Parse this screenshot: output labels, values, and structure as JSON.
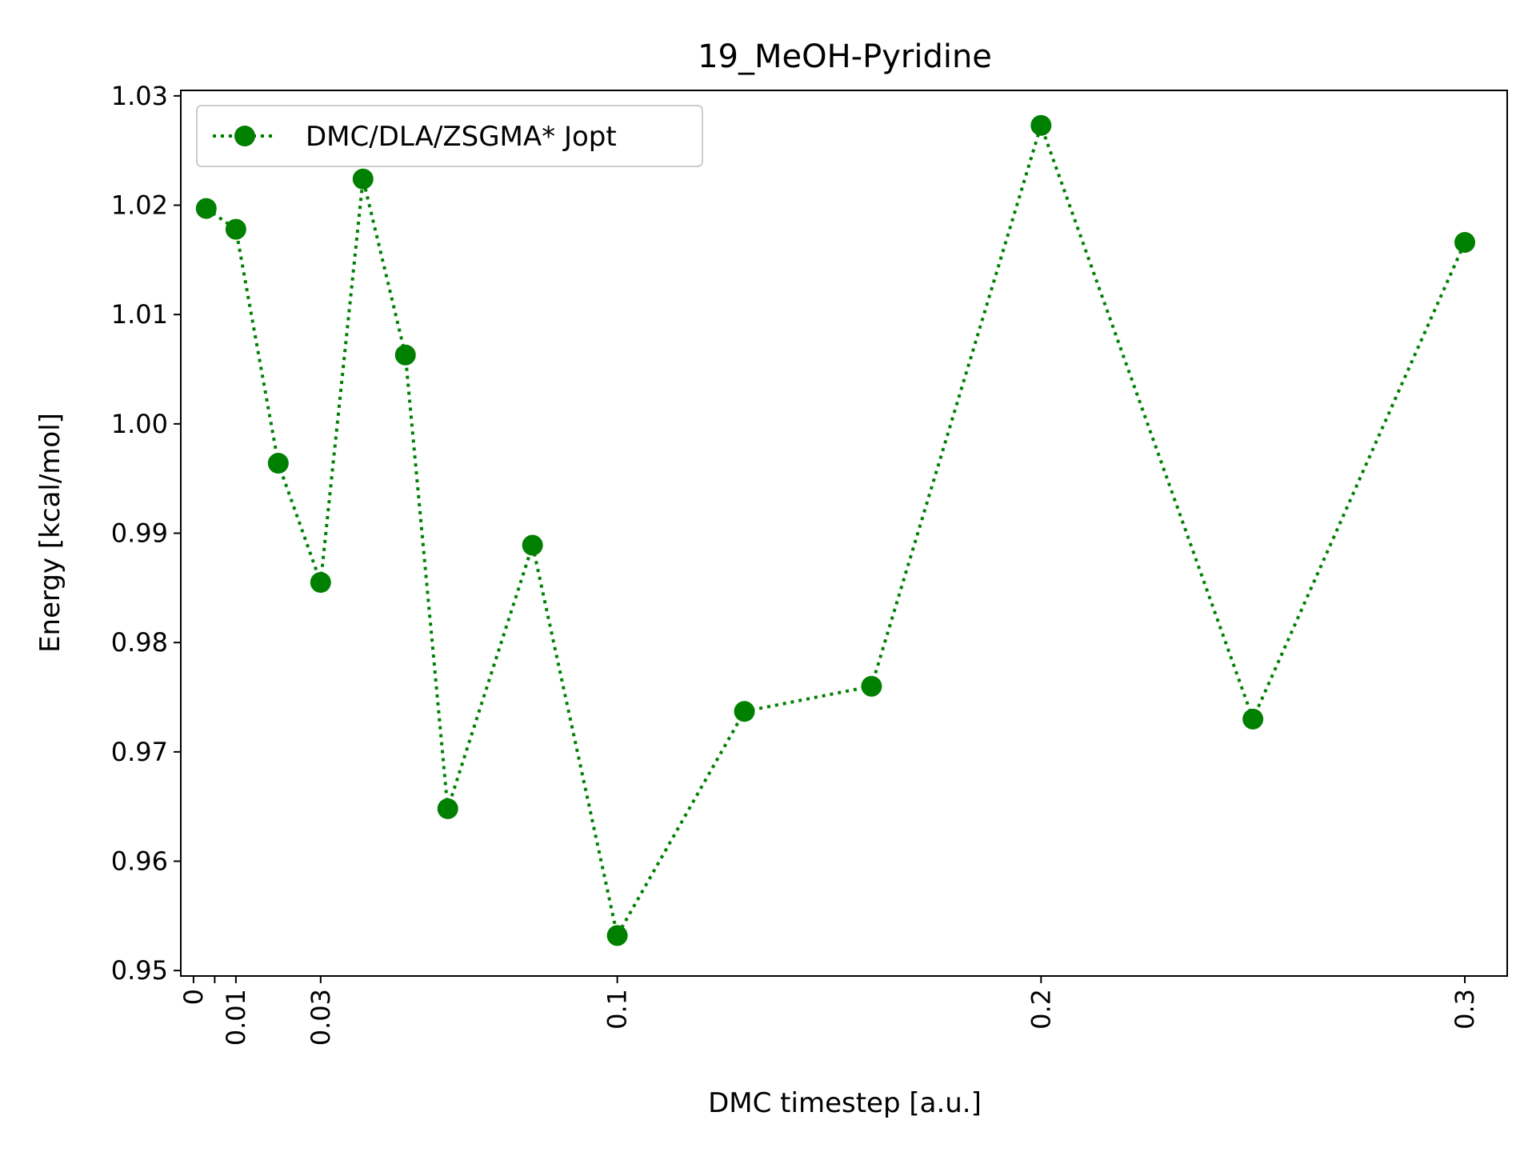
{
  "chart_data": {
    "type": "line",
    "title": "19_MeOH-Pyridine",
    "xlabel": "DMC timestep [a.u.]",
    "ylabel": "Energy [kcal/mol]",
    "xlim": [
      -0.003,
      0.31
    ],
    "ylim": [
      0.9495,
      1.0305
    ],
    "x_ticks": [
      0,
      0.005,
      0.01,
      0.03,
      0.1,
      0.2,
      0.3
    ],
    "x_tick_labels": [
      "0",
      "",
      "0.01",
      "0.03",
      "0.1",
      "0.2",
      "0.3"
    ],
    "y_ticks": [
      0.95,
      0.96,
      0.97,
      0.98,
      0.99,
      1.0,
      1.01,
      1.02,
      1.03
    ],
    "y_tick_labels": [
      "0.95",
      "0.96",
      "0.97",
      "0.98",
      "0.99",
      "1.00",
      "1.01",
      "1.02",
      "1.03"
    ],
    "grid": false,
    "legend": "top-left",
    "series": [
      {
        "name": "DMC/DLA/ZSGMA* Jopt",
        "color": "#008000",
        "line_style": "dotted",
        "marker": "circle",
        "x": [
          0.003,
          0.01,
          0.02,
          0.03,
          0.04,
          0.05,
          0.06,
          0.08,
          0.1,
          0.13,
          0.16,
          0.2,
          0.25,
          0.3
        ],
        "y": [
          1.0197,
          1.0178,
          0.9964,
          0.9855,
          1.0224,
          1.0063,
          0.9648,
          0.9889,
          0.9532,
          0.9737,
          0.976,
          1.0273,
          0.973,
          1.0166
        ]
      }
    ]
  }
}
